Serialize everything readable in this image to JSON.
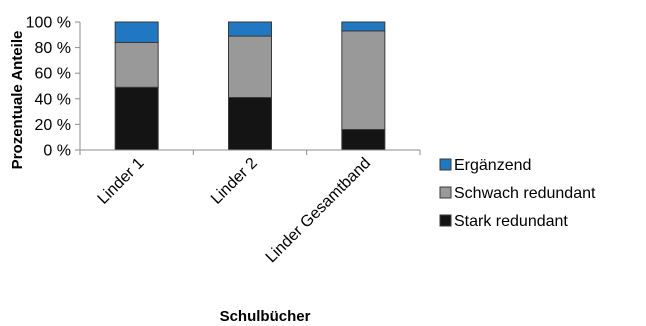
{
  "chart_data": {
    "type": "bar",
    "stacked": true,
    "categories": [
      "Linder 1",
      "Linder 2",
      "Linder Gesamtband"
    ],
    "series": [
      {
        "name": "Stark redundant",
        "values": [
          49,
          41,
          16
        ],
        "color": "#141414"
      },
      {
        "name": "Schwach redundant",
        "values": [
          35,
          48,
          77
        ],
        "color": "#999999"
      },
      {
        "name": "Ergänzend",
        "values": [
          16,
          11,
          7
        ],
        "color": "#1f78c1"
      }
    ],
    "legend_order": [
      "Ergänzend",
      "Schwach redundant",
      "Stark redundant"
    ],
    "xlabel": "Schulbücher",
    "ylabel": "Prozentuale Anteile",
    "ylim": [
      0,
      100
    ],
    "yticks": [
      0,
      20,
      40,
      60,
      80,
      100
    ],
    "ytick_labels": [
      "0 %",
      "20 %",
      "40 %",
      "60 %",
      "80 %",
      "100 %"
    ],
    "grid": false,
    "legend_position": "right"
  }
}
